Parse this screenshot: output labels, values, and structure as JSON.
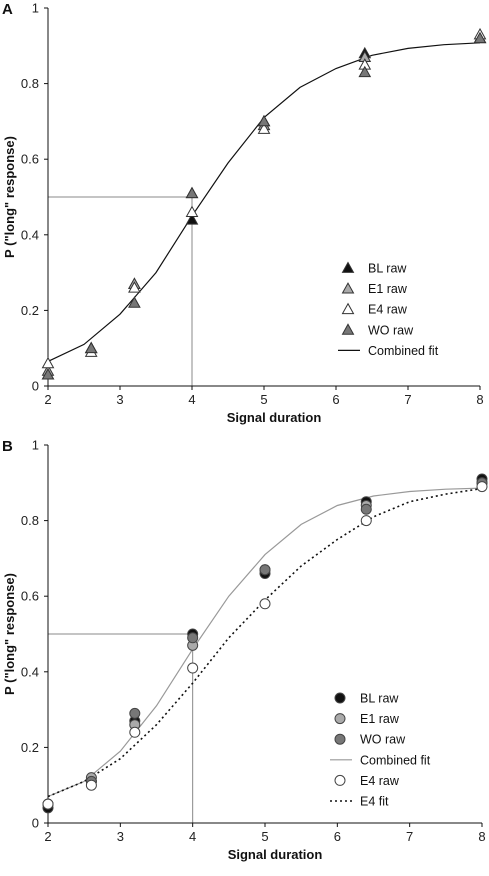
{
  "chart_data": [
    {
      "panel": "A",
      "type": "scatter",
      "xlabel": "Signal duration",
      "ylabel": "P (\"long\" response)",
      "xlim": [
        2,
        8
      ],
      "ylim": [
        0,
        1
      ],
      "xticks": [
        2,
        3,
        4,
        5,
        6,
        7,
        8
      ],
      "yticks": [
        0,
        0.2,
        0.4,
        0.6,
        0.8,
        1
      ],
      "ytick_labels": [
        "0",
        "0.2",
        "0.4",
        "0.6",
        "0.8",
        "1"
      ],
      "grid": false,
      "legend_position": "bottom-right",
      "x": [
        2,
        2.6,
        3.2,
        4,
        5,
        6.4,
        8
      ],
      "series": [
        {
          "name": "BL raw",
          "marker": "triangle-filled",
          "color": "#111111",
          "values": [
            0.03,
            0.1,
            0.27,
            0.44,
            0.7,
            0.88,
            0.92
          ]
        },
        {
          "name": "E1 raw",
          "marker": "triangle",
          "color": "#aaaaaa",
          "values": [
            0.04,
            0.1,
            0.27,
            0.51,
            0.69,
            0.87,
            0.92
          ]
        },
        {
          "name": "E4 raw",
          "marker": "triangle",
          "color": "#ffffff",
          "values": [
            0.06,
            0.09,
            0.26,
            0.46,
            0.68,
            0.85,
            0.93
          ]
        },
        {
          "name": "WO raw",
          "marker": "triangle",
          "color": "#777777",
          "values": [
            0.03,
            0.1,
            0.22,
            0.51,
            0.7,
            0.83,
            0.92
          ]
        },
        {
          "name": "Combined fit",
          "style": "line",
          "color": "#111111",
          "x": [
            2,
            2.5,
            3,
            3.5,
            4,
            4.5,
            5,
            5.5,
            6,
            6.5,
            7,
            7.5,
            8
          ],
          "values": [
            0.065,
            0.11,
            0.19,
            0.3,
            0.45,
            0.59,
            0.71,
            0.79,
            0.84,
            0.875,
            0.893,
            0.903,
            0.908
          ]
        }
      ],
      "reference_lines": {
        "x": 4,
        "y": 0.5,
        "color": "#888888"
      }
    },
    {
      "panel": "B",
      "type": "scatter",
      "xlabel": "Signal duration",
      "ylabel": "P (\"long\" response)",
      "xlim": [
        2,
        8
      ],
      "ylim": [
        0,
        1
      ],
      "xticks": [
        2,
        3,
        4,
        5,
        6,
        7,
        8
      ],
      "yticks": [
        0,
        0.2,
        0.4,
        0.6,
        0.8,
        1
      ],
      "ytick_labels": [
        "0",
        "0.2",
        "0.4",
        "0.6",
        "0.8",
        "1"
      ],
      "grid": false,
      "legend_position": "bottom-right",
      "x": [
        2,
        2.6,
        3.2,
        4,
        5,
        6.4,
        8
      ],
      "series": [
        {
          "name": "BL raw",
          "marker": "circle-filled",
          "color": "#111111",
          "values": [
            0.04,
            0.11,
            0.27,
            0.5,
            0.66,
            0.85,
            0.91
          ]
        },
        {
          "name": "E1 raw",
          "marker": "circle",
          "color": "#aaaaaa",
          "values": [
            0.05,
            0.12,
            0.26,
            0.47,
            0.67,
            0.84,
            0.9
          ]
        },
        {
          "name": "WO raw",
          "marker": "circle",
          "color": "#777777",
          "values": [
            0.05,
            0.11,
            0.29,
            0.49,
            0.67,
            0.83,
            0.9
          ]
        },
        {
          "name": "Combined fit",
          "style": "line",
          "color": "#999999",
          "x": [
            2,
            2.5,
            3,
            3.5,
            4,
            4.5,
            5,
            5.5,
            6,
            6.5,
            7,
            7.5,
            8
          ],
          "values": [
            0.07,
            0.11,
            0.19,
            0.31,
            0.46,
            0.6,
            0.71,
            0.79,
            0.84,
            0.865,
            0.877,
            0.883,
            0.886
          ]
        },
        {
          "name": "E4 raw",
          "marker": "circle",
          "color": "#ffffff",
          "values": [
            0.05,
            0.1,
            0.24,
            0.41,
            0.58,
            0.8,
            0.89
          ]
        },
        {
          "name": "E4 fit",
          "style": "dotted",
          "color": "#111111",
          "x": [
            2,
            2.5,
            3,
            3.5,
            4,
            4.5,
            5,
            5.5,
            6,
            6.5,
            7,
            7.5,
            8
          ],
          "values": [
            0.07,
            0.11,
            0.17,
            0.26,
            0.37,
            0.49,
            0.59,
            0.68,
            0.75,
            0.81,
            0.85,
            0.87,
            0.885
          ]
        }
      ],
      "reference_lines": {
        "x": 4,
        "y": 0.5,
        "color": "#888888"
      }
    }
  ]
}
